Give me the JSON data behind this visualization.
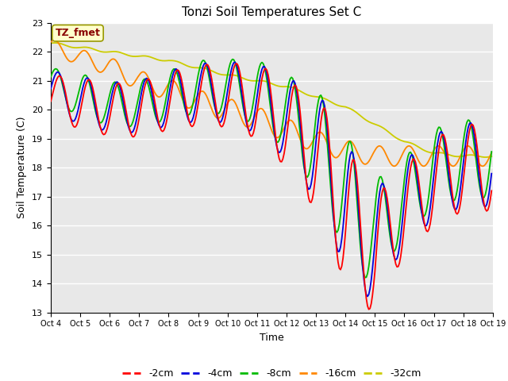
{
  "title": "Tonzi Soil Temperatures Set C",
  "xlabel": "Time",
  "ylabel": "Soil Temperature (C)",
  "ylim": [
    13.0,
    23.0
  ],
  "yticks": [
    13.0,
    14.0,
    15.0,
    16.0,
    17.0,
    18.0,
    19.0,
    20.0,
    21.0,
    22.0,
    23.0
  ],
  "xtick_labels": [
    "Oct 4",
    "Oct 5",
    "Oct 6",
    "Oct 7",
    "Oct 8",
    "Oct 9",
    "Oct 10",
    "Oct 11",
    "Oct 12",
    "Oct 13",
    "Oct 14",
    "Oct 15",
    "Oct 16",
    "Oct 17",
    "Oct 18",
    "Oct 19"
  ],
  "series_colors": [
    "#ff0000",
    "#0000dd",
    "#00bb00",
    "#ff8800",
    "#cccc00"
  ],
  "series_labels": [
    "-2cm",
    "-4cm",
    "-8cm",
    "-16cm",
    "-32cm"
  ],
  "annotation_text": "TZ_fmet",
  "annotation_color": "#880000",
  "annotation_bg": "#ffffcc",
  "annotation_edge": "#999900",
  "background_color": "#ffffff",
  "plot_bg_color": "#e8e8e8",
  "grid_color": "#ffffff",
  "n_days": 15,
  "n_pts_per_day": 24
}
